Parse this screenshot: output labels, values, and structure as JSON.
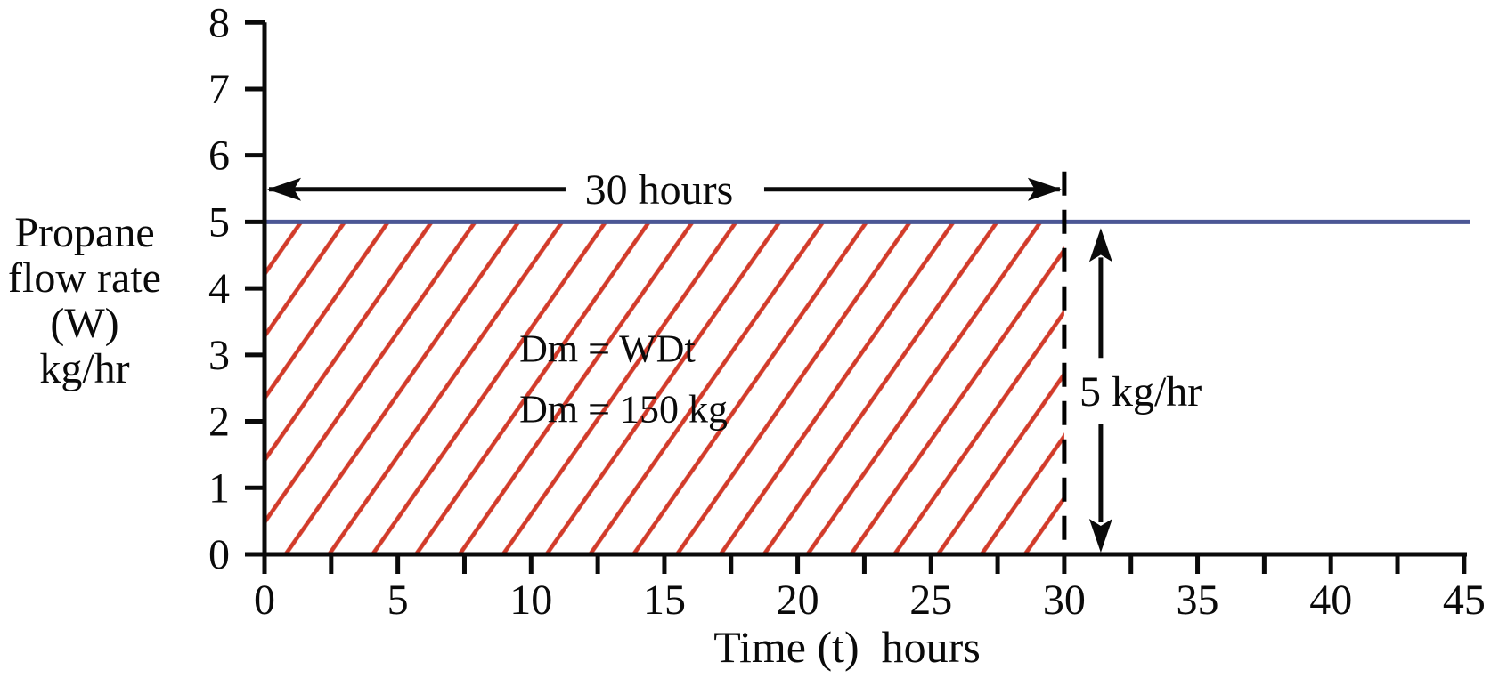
{
  "chart_data": {
    "type": "area",
    "title": "",
    "xlabel": "Time (t)  hours",
    "ylabel_lines": [
      "Propane",
      "flow rate",
      "(W)",
      "kg/hr"
    ],
    "xlim": [
      0,
      45
    ],
    "ylim": [
      0,
      8
    ],
    "xticks": [
      0,
      5,
      10,
      15,
      20,
      25,
      30,
      35,
      40,
      45
    ],
    "x_minor_step": 2.5,
    "yticks": [
      0,
      1,
      2,
      3,
      4,
      5,
      6,
      7,
      8
    ],
    "grid": false,
    "legend": "none",
    "series": [
      {
        "name": "propane flow rate",
        "type": "hline",
        "y": 5,
        "x_range": [
          0,
          45
        ],
        "color": "#4b5795"
      }
    ],
    "shaded_region": {
      "x_range": [
        0,
        30
      ],
      "y_range": [
        0,
        5
      ],
      "style": "diagonal-hatch",
      "hatch_color": "#d23b2a",
      "hatch_angle_deg": 55
    },
    "region_boundary": {
      "x": 30,
      "style": "dashed",
      "color": "#000000"
    },
    "annotations": {
      "duration_arrow": {
        "label": "30 hours",
        "x_range": [
          0,
          30
        ],
        "y": 5.49,
        "label_center_x": 14.8
      },
      "rate_arrow": {
        "label": "5 kg/hr",
        "x": 31.37,
        "y_range": [
          0,
          5
        ],
        "label_left_x": 30.57,
        "label_center_y": 2.46
      },
      "equations": [
        "Dm = WDt",
        "Dm = 150 kg"
      ],
      "equations_x": 9.56,
      "equations_y": [
        2.9,
        1.99
      ]
    },
    "colors": {
      "axis": "#0a0a0a",
      "text": "#0a0a0a",
      "background": "#ffffff"
    }
  }
}
